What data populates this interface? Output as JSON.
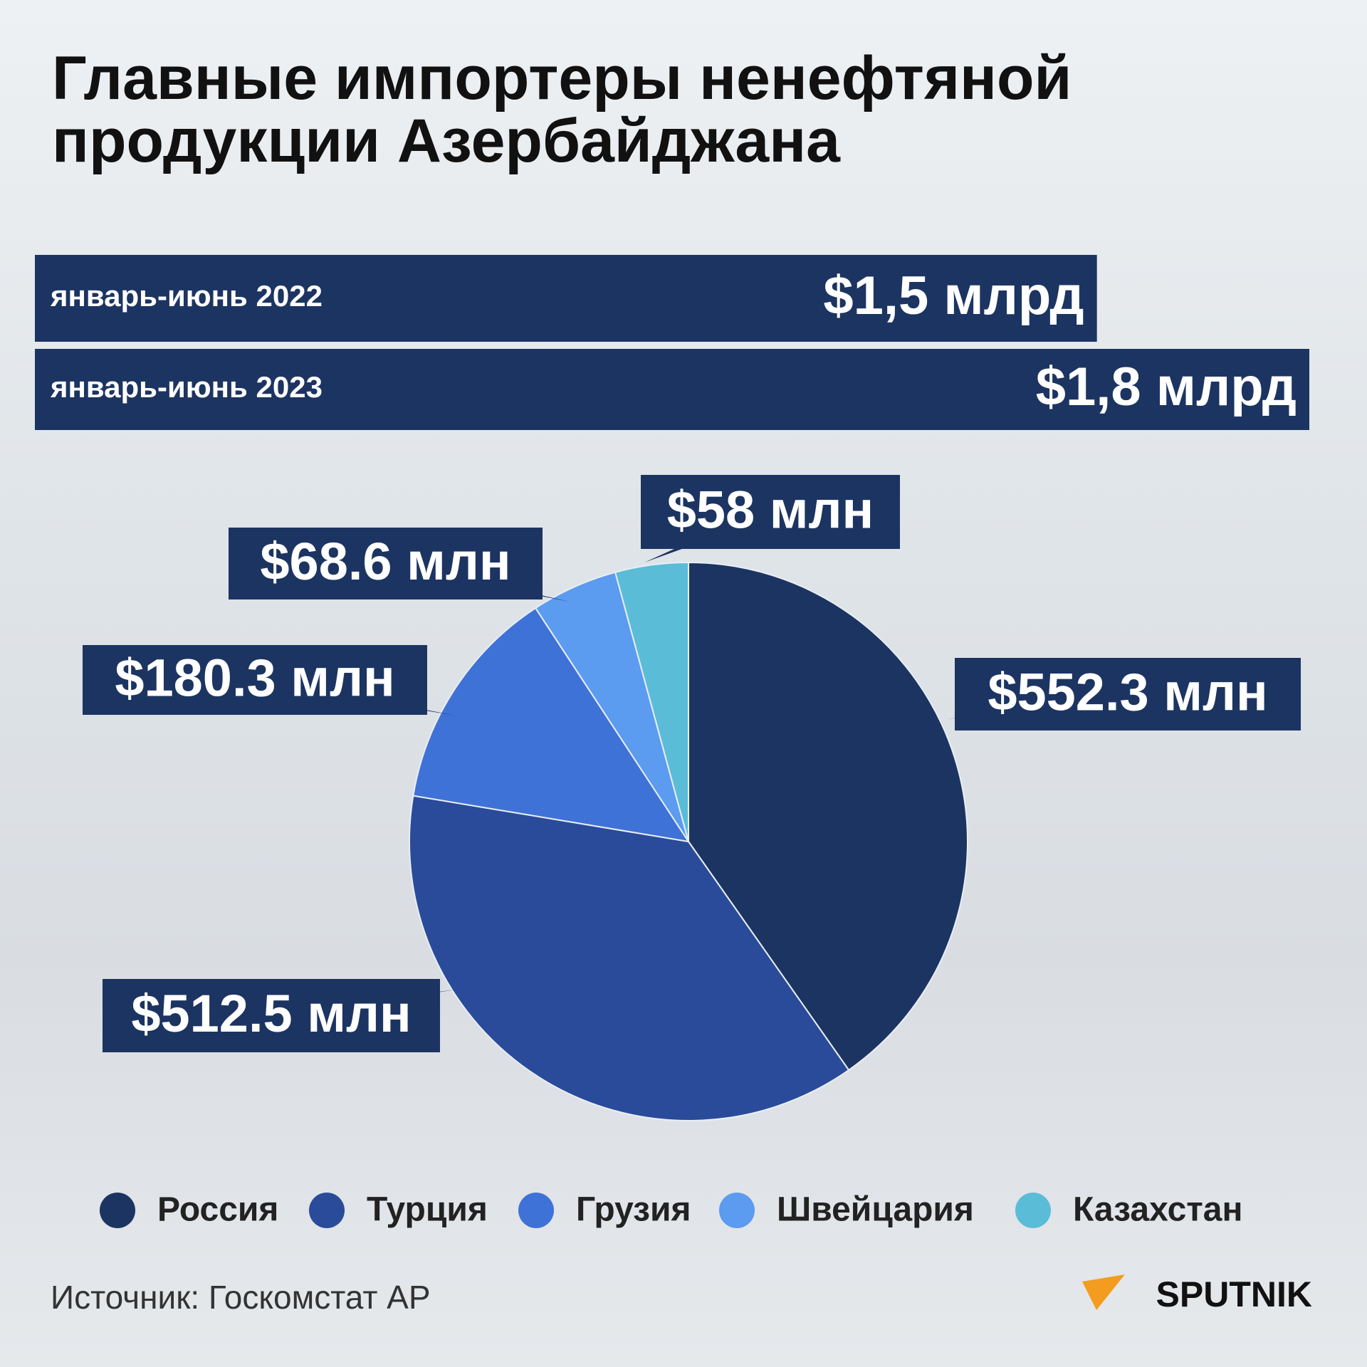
{
  "chart_data": [
    {
      "type": "bar",
      "title": "Главные импортеры ненефтяной продукции Азербайджана",
      "categories": [
        "январь-июнь 2022",
        "январь-июнь 2023"
      ],
      "values": [
        1.5,
        1.8
      ],
      "value_labels": [
        "$1,5 млрд",
        "$1,8 млрд"
      ],
      "color": "#1c3461"
    },
    {
      "type": "pie",
      "categories": [
        "Россия",
        "Турция",
        "Грузия",
        "Швейцария",
        "Казахстан"
      ],
      "values": [
        552.3,
        512.5,
        180.3,
        68.6,
        58
      ],
      "value_labels": [
        "$552.3 млн",
        "$512.5 млн",
        "$180.3 млн",
        "$68.6 млн",
        "$58 млн"
      ],
      "colors": [
        "#1c3461",
        "#2a4b9a",
        "#3f72d6",
        "#5b9bf0",
        "#5bbcd8"
      ]
    }
  ],
  "source": "Источник: Госкомстат АР",
  "logo": "SPUTNIK"
}
